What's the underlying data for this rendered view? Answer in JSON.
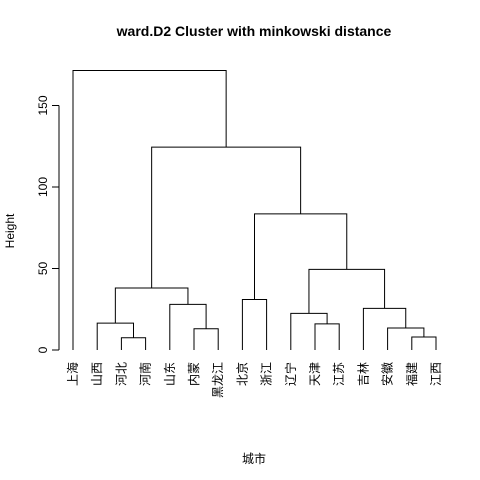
{
  "chart_data": {
    "type": "dendrogram",
    "title": "ward.D2 Cluster with minkowski distance",
    "xlabel": "城市",
    "ylabel": "Height",
    "ylim": [
      0,
      175
    ],
    "yticks": [
      0,
      50,
      100,
      150
    ],
    "leaves": [
      "上海",
      "山西",
      "河北",
      "河南",
      "山东",
      "内蒙",
      "黑龙江",
      "北京",
      "浙江",
      "辽宁",
      "天津",
      "江苏",
      "吉林",
      "安徽",
      "福建",
      "江西"
    ],
    "merges": [
      {
        "id": "m1",
        "left": "河北",
        "right": "河南",
        "height": 7.5
      },
      {
        "id": "m2",
        "left": "山西",
        "right": "m1",
        "height": 16.5
      },
      {
        "id": "m3",
        "left": "内蒙",
        "right": "黑龙江",
        "height": 13
      },
      {
        "id": "m4",
        "left": "山东",
        "right": "m3",
        "height": 28
      },
      {
        "id": "m5",
        "left": "m2",
        "right": "m4",
        "height": 38
      },
      {
        "id": "m6",
        "left": "北京",
        "right": "浙江",
        "height": 31
      },
      {
        "id": "m7",
        "left": "天津",
        "right": "江苏",
        "height": 16
      },
      {
        "id": "m8",
        "left": "辽宁",
        "right": "m7",
        "height": 22.5
      },
      {
        "id": "m9",
        "left": "福建",
        "right": "江西",
        "height": 8
      },
      {
        "id": "m10",
        "left": "安徽",
        "right": "m9",
        "height": 13.5
      },
      {
        "id": "m11",
        "left": "吉林",
        "right": "m10",
        "height": 25.5
      },
      {
        "id": "m12",
        "left": "m8",
        "right": "m11",
        "height": 49.5
      },
      {
        "id": "m13",
        "left": "m6",
        "right": "m12",
        "height": 83.5
      },
      {
        "id": "m14",
        "left": "m5",
        "right": "m13",
        "height": 124.5
      },
      {
        "id": "m15",
        "left": "上海",
        "right": "m14",
        "height": 171.5
      }
    ]
  }
}
